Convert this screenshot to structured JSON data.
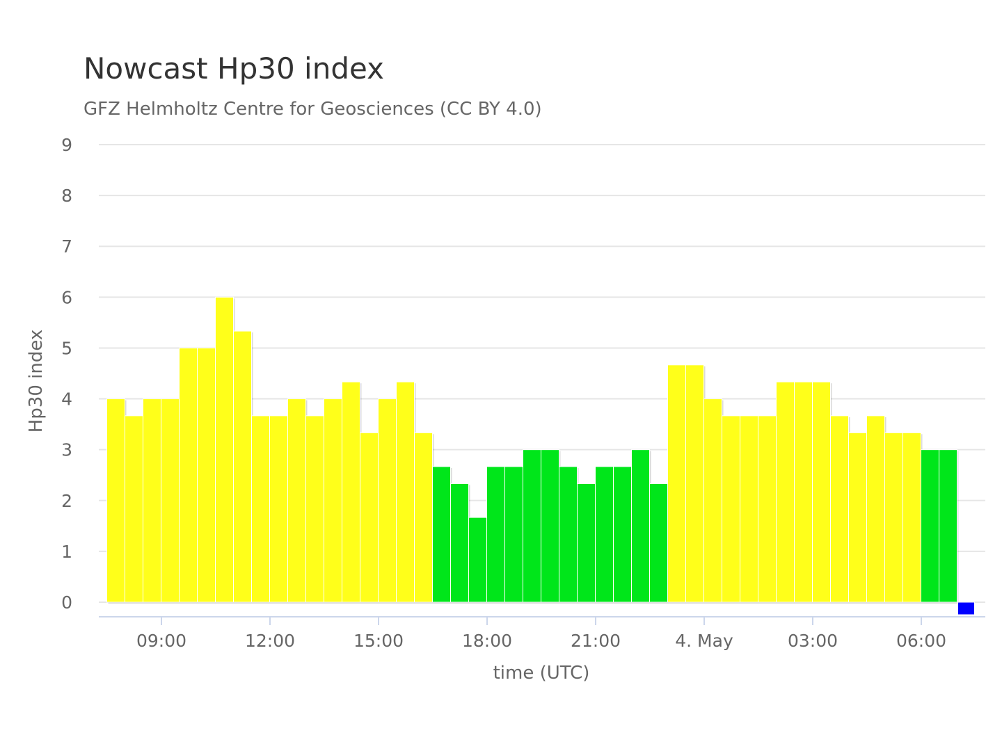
{
  "chart_data": {
    "type": "bar",
    "title": "Nowcast Hp30 index",
    "subtitle": "GFZ Helmholtz Centre for Geosciences (CC BY 4.0)",
    "xlabel": "time (UTC)",
    "ylabel": "Hp30 index",
    "ylim": [
      0,
      9
    ],
    "yticks": [
      0,
      1,
      2,
      3,
      4,
      5,
      6,
      7,
      8,
      9
    ],
    "grid": true,
    "xtick_labels": [
      {
        "label": "09:00",
        "slot": 3
      },
      {
        "label": "12:00",
        "slot": 9
      },
      {
        "label": "15:00",
        "slot": 15
      },
      {
        "label": "18:00",
        "slot": 21
      },
      {
        "label": "21:00",
        "slot": 27
      },
      {
        "label": "4. May",
        "slot": 33
      },
      {
        "label": "03:00",
        "slot": 39
      },
      {
        "label": "06:00",
        "slot": 45
      }
    ],
    "start_time": "07:30",
    "interval_minutes": 30,
    "values": [
      4,
      3.667,
      4,
      4,
      5,
      5,
      6,
      5.333,
      3.667,
      3.667,
      4,
      3.667,
      4,
      4.333,
      3.333,
      4,
      4.333,
      3.333,
      2.667,
      2.333,
      1.667,
      2.667,
      2.667,
      3,
      3,
      2.667,
      2.333,
      2.667,
      2.667,
      3,
      2.333,
      4.667,
      4.667,
      4,
      3.667,
      3.667,
      3.667,
      4.333,
      4.333,
      4.333,
      3.667,
      3.333,
      3.667,
      3.333,
      3.333,
      3,
      3,
      0
    ],
    "colors": [
      "#ffff1a",
      "#ffff1a",
      "#ffff1a",
      "#ffff1a",
      "#ffff1a",
      "#ffff1a",
      "#ffff1a",
      "#ffff1a",
      "#ffff1a",
      "#ffff1a",
      "#ffff1a",
      "#ffff1a",
      "#ffff1a",
      "#ffff1a",
      "#ffff1a",
      "#ffff1a",
      "#ffff1a",
      "#ffff1a",
      "#00e61a",
      "#00e61a",
      "#00e61a",
      "#00e61a",
      "#00e61a",
      "#00e61a",
      "#00e61a",
      "#00e61a",
      "#00e61a",
      "#00e61a",
      "#00e61a",
      "#00e61a",
      "#00e61a",
      "#ffff1a",
      "#ffff1a",
      "#ffff1a",
      "#ffff1a",
      "#ffff1a",
      "#ffff1a",
      "#ffff1a",
      "#ffff1a",
      "#ffff1a",
      "#ffff1a",
      "#ffff1a",
      "#ffff1a",
      "#ffff1a",
      "#ffff1a",
      "#00e61a",
      "#00e61a",
      "#0000ff"
    ]
  }
}
